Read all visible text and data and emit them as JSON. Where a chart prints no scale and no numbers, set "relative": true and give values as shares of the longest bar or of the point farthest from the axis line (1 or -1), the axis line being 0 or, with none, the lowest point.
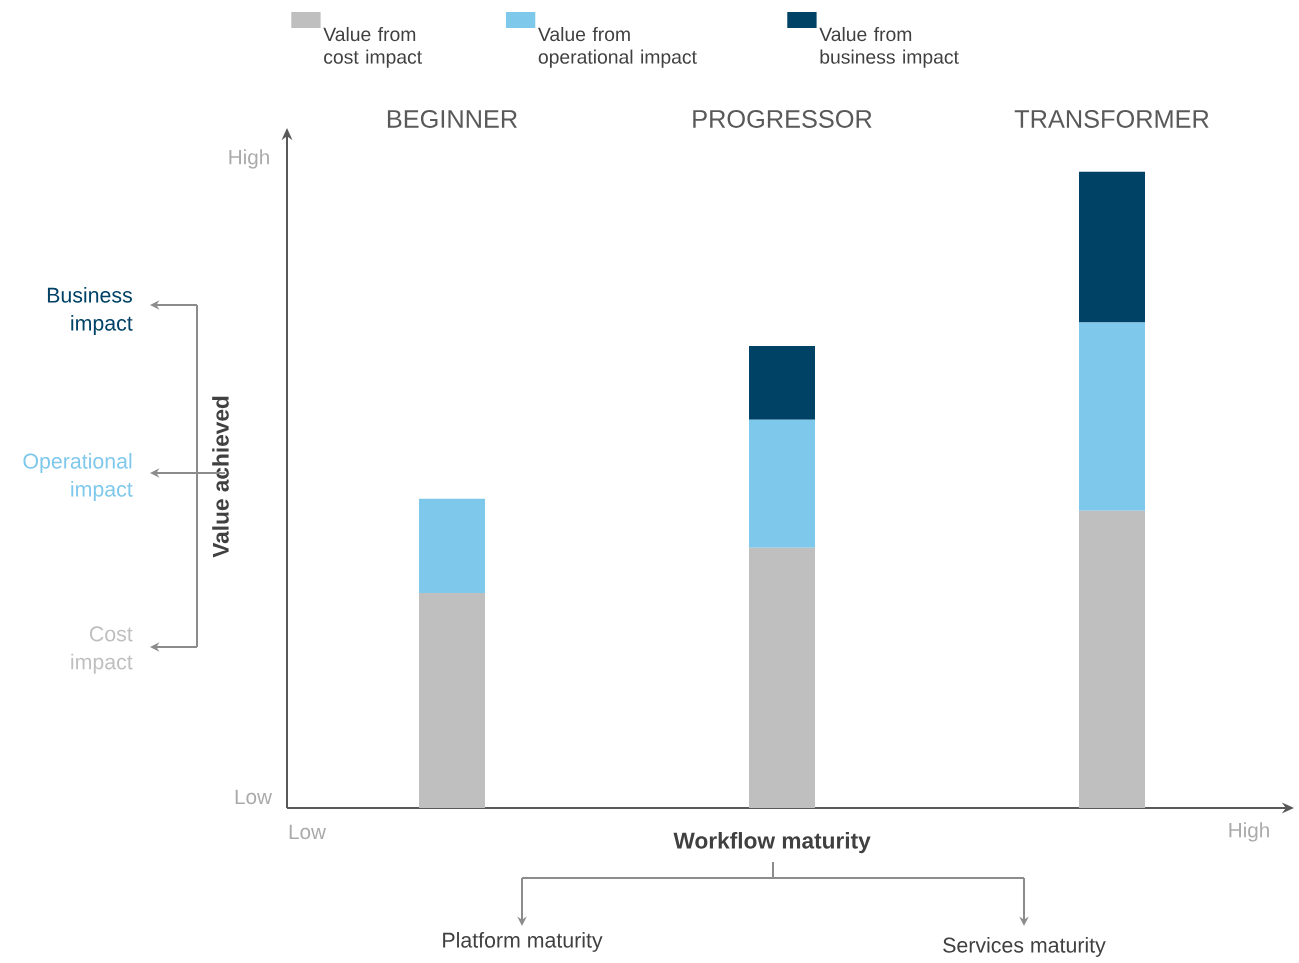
{
  "chart_data": {
    "type": "bar",
    "stacked": true,
    "relative": true,
    "legend": "top",
    "categories": [
      "BEGINNER",
      "PROGRESSOR",
      "TRANSFORMER"
    ],
    "xlabel": "Workflow maturity",
    "ylabel": "Value achieved",
    "series": [
      {
        "name": "Value from cost impact",
        "color": "#bfbfbf",
        "values": [
          0.338,
          0.409,
          0.467
        ]
      },
      {
        "name": "Value from operational impact",
        "color": "#7ec8ec",
        "values": [
          0.148,
          0.201,
          0.296
        ]
      },
      {
        "name": "Value from business impact",
        "color": "#004266",
        "values": [
          null,
          0.116,
          0.237
        ]
      }
    ],
    "annotations": [
      "High",
      "Low",
      "Low",
      "High",
      "Business impact",
      "Operational impact",
      "Cost impact",
      "Platform maturity",
      "Services maturity"
    ]
  }
}
